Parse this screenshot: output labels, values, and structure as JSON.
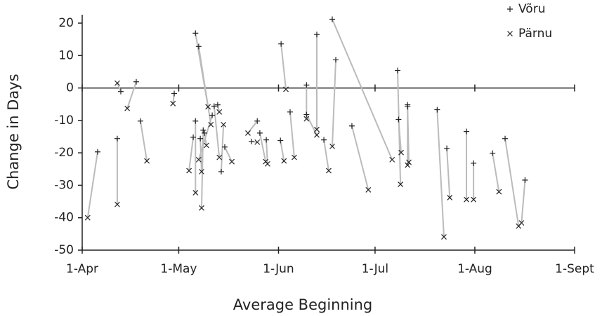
{
  "chart_data": {
    "type": "scatter",
    "x_label": "Average Beginning",
    "y_label": "Change in Days",
    "xlim": [
      0,
      153
    ],
    "xticks": [
      {
        "value": 0,
        "label": "1-Apr"
      },
      {
        "value": 30,
        "label": "1-May"
      },
      {
        "value": 61,
        "label": "1-Jun"
      },
      {
        "value": 91,
        "label": "1-Jul"
      },
      {
        "value": 122,
        "label": "1-Aug"
      },
      {
        "value": 153,
        "label": "1-Sept"
      }
    ],
    "ylim": [
      -50,
      20
    ],
    "yticks": [
      -50,
      -40,
      -30,
      -20,
      -10,
      0,
      10,
      20
    ],
    "grid": false,
    "connector_color": "#bbbbbb",
    "legend": "top-right",
    "series": [
      {
        "name": "Võru",
        "marker": "plus",
        "color": "#222222",
        "x": [
          4.8,
          12.0,
          10.9,
          16.8,
          18.1,
          28.6,
          35.2,
          36.2,
          35.2,
          34.5,
          37.6,
          36.7,
          38.0,
          40.4,
          42.1,
          43.2,
          44.3,
          41.0,
          54.4,
          52.6,
          55.2,
          57.2,
          61.8,
          61.6,
          64.6,
          69.7,
          69.7,
          72.9,
          75.1,
          77.7,
          78.8,
          83.8,
          98.0,
          98.3,
          101.1,
          101.1,
          110.3,
          113.3,
          119.4,
          121.6,
          127.5,
          131.4,
          137.6
        ],
        "values": [
          -19.7,
          -1.1,
          -15.6,
          1.9,
          -10.2,
          -1.7,
          16.9,
          12.8,
          -10.2,
          -15.2,
          -13.0,
          -15.6,
          -13.9,
          -8.4,
          -5.2,
          -25.8,
          -18.2,
          -5.6,
          -10.2,
          -16.5,
          -13.9,
          -16.0,
          13.6,
          -16.2,
          -7.4,
          0.9,
          -8.2,
          16.5,
          -16.0,
          21.2,
          8.7,
          -11.7,
          5.4,
          -9.7,
          -5.2,
          -5.8,
          -6.7,
          -18.6,
          -13.4,
          -23.2,
          -20.1,
          -15.6,
          -28.4
        ]
      },
      {
        "name": "Pärnu",
        "marker": "cross",
        "color": "#222222",
        "x": [
          1.7,
          10.9,
          10.9,
          14.0,
          20.1,
          28.2,
          39.1,
          40.0,
          35.2,
          33.2,
          37.1,
          37.1,
          38.6,
          36.2,
          42.6,
          43.9,
          46.5,
          42.6,
          51.5,
          54.4,
          57.0,
          57.6,
          63.3,
          62.7,
          65.9,
          69.7,
          72.9,
          72.9,
          76.6,
          96.3,
          77.7,
          88.9,
          98.9,
          99.1,
          101.1,
          101.5,
          112.4,
          114.2,
          119.4,
          121.6,
          129.5,
          135.6,
          136.5
        ],
        "values": [
          -40.0,
          1.5,
          -35.9,
          -6.3,
          -22.5,
          -4.8,
          -5.8,
          -11.3,
          -32.3,
          -25.5,
          -37.0,
          -25.8,
          -17.7,
          -22.1,
          -7.4,
          -11.3,
          -22.7,
          -21.4,
          -13.9,
          -16.7,
          -22.7,
          -23.4,
          -0.4,
          -22.5,
          -21.4,
          -9.5,
          -14.5,
          -12.8,
          -25.5,
          -22.1,
          -18.0,
          -31.4,
          -29.7,
          -19.9,
          -23.8,
          -22.9,
          -45.9,
          -33.8,
          -34.4,
          -34.4,
          -32.0,
          -42.6,
          -41.6
        ]
      }
    ]
  }
}
